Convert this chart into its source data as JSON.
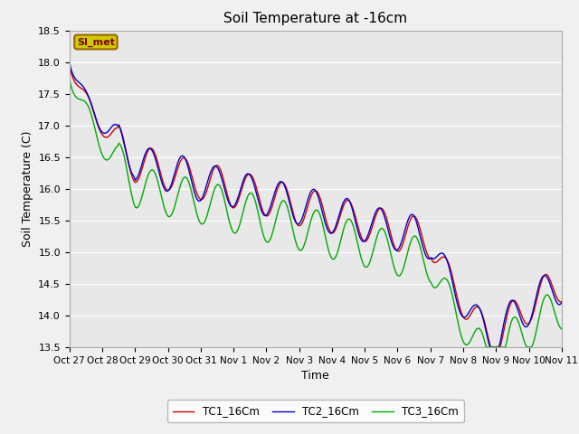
{
  "title": "Soil Temperature at -16cm",
  "xlabel": "Time",
  "ylabel": "Soil Temperature (C)",
  "ylim": [
    13.5,
    18.5
  ],
  "yticks": [
    13.5,
    14.0,
    14.5,
    15.0,
    15.5,
    16.0,
    16.5,
    17.0,
    17.5,
    18.0,
    18.5
  ],
  "xtick_labels": [
    "Oct 27",
    "Oct 28",
    "Oct 29",
    "Oct 30",
    "Oct 31",
    "Nov 1",
    "Nov 2",
    "Nov 3",
    "Nov 4",
    "Nov 5",
    "Nov 6",
    "Nov 7",
    "Nov 8",
    "Nov 9",
    "Nov 10",
    "Nov 11"
  ],
  "line_colors": [
    "#cc0000",
    "#0000cc",
    "#00aa00"
  ],
  "line_labels": [
    "TC1_16Cm",
    "TC2_16Cm",
    "TC3_16Cm"
  ],
  "annotation_text": "SI_met",
  "annotation_bg": "#cccc00",
  "annotation_border": "#996600",
  "fig_facecolor": "#f0f0f0",
  "ax_facecolor": "#e8e8e8",
  "grid_color": "#ffffff",
  "title_fontsize": 11,
  "label_fontsize": 9,
  "tick_fontsize": 8
}
